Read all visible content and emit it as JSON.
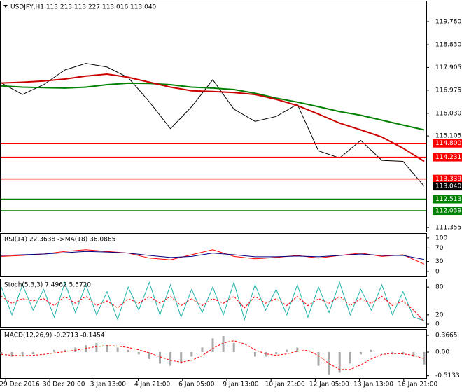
{
  "chart_data": [
    {
      "type": "line",
      "title": "USDJPY,H1  113.213 113.227 113.016 113.040",
      "ylim": [
        111.18,
        120.64
      ],
      "yticks": [
        {
          "value": 119.78,
          "label": "119.780"
        },
        {
          "value": 118.83,
          "label": "118.830"
        },
        {
          "value": 117.905,
          "label": "117.905"
        },
        {
          "value": 116.975,
          "label": "116.975"
        },
        {
          "value": 116.03,
          "label": "116.030"
        },
        {
          "value": 115.105,
          "label": "115.105"
        },
        {
          "value": 111.355,
          "label": "111.355"
        }
      ],
      "series": [
        {
          "color": "#000000",
          "width": 1,
          "values": [
            117.27,
            116.8,
            117.2,
            117.8,
            118.07,
            117.92,
            117.49,
            116.5,
            115.4,
            116.3,
            117.4,
            116.2,
            115.7,
            115.9,
            116.4,
            114.49,
            114.2,
            114.92,
            114.1,
            114.06,
            113.04
          ]
        },
        {
          "color": "#008000",
          "width": 2,
          "values": [
            117.15,
            117.1,
            117.08,
            117.06,
            117.1,
            117.2,
            117.26,
            117.25,
            117.2,
            117.1,
            117.06,
            117.0,
            116.85,
            116.65,
            116.49,
            116.3,
            116.1,
            115.95,
            115.75,
            115.55,
            115.35
          ]
        },
        {
          "color": "#cc0000",
          "width": 2,
          "values": [
            117.27,
            117.3,
            117.35,
            117.43,
            117.55,
            117.63,
            117.5,
            117.3,
            117.1,
            116.95,
            116.92,
            116.88,
            116.8,
            116.6,
            116.35,
            116.0,
            115.63,
            115.35,
            115.06,
            114.6,
            114.06
          ]
        }
      ],
      "levels": [
        {
          "value": 114.8,
          "label": "114.800",
          "color": "#ff0000",
          "line": true
        },
        {
          "value": 114.231,
          "label": "114.231",
          "color": "#ff0000",
          "line": true
        },
        {
          "value": 113.339,
          "label": "113.339",
          "color": "#ff0000",
          "line": true
        },
        {
          "value": 113.04,
          "label": "113.040",
          "color": "#000000",
          "line": false
        },
        {
          "value": 112.513,
          "label": "112.513",
          "color": "#008000",
          "line": true
        },
        {
          "value": 112.039,
          "label": "112.039",
          "color": "#008000",
          "line": true
        }
      ]
    },
    {
      "type": "line",
      "title": "RSI(14) 22.3638 ->MA(18) 36.0865",
      "ylim": [
        -14.3,
        114.3
      ],
      "yticks": [
        100,
        70,
        30,
        0
      ],
      "series": [
        {
          "color": "#ff0000",
          "width": 1,
          "values": [
            45,
            48,
            52,
            60,
            65,
            60,
            55,
            40,
            35,
            50,
            65,
            45,
            38,
            42,
            48,
            40,
            48,
            55,
            45,
            50,
            22.3638
          ]
        },
        {
          "color": "#000080",
          "width": 1,
          "values": [
            48,
            50,
            52,
            56,
            60,
            58,
            55,
            48,
            42,
            45,
            55,
            50,
            44,
            44,
            46,
            44,
            48,
            52,
            48,
            48,
            36.0865
          ]
        }
      ]
    },
    {
      "type": "line",
      "title": "Stoch(5,3,3) 7.4962 5.5720",
      "ylim": [
        -6,
        98.5
      ],
      "yticks": [
        80,
        20,
        0
      ],
      "series": [
        {
          "color": "#20b2aa",
          "width": 1,
          "values": [
            80,
            20,
            85,
            30,
            75,
            15,
            90,
            25,
            85,
            20,
            70,
            10,
            80,
            30,
            90,
            20,
            85,
            15,
            75,
            25,
            80,
            20,
            90,
            10,
            85,
            30,
            75,
            20,
            85,
            15,
            80,
            25,
            90,
            20,
            75,
            30,
            85,
            20,
            70,
            15,
            7.4962
          ]
        },
        {
          "color": "#ff0000",
          "width": 1,
          "dash": true,
          "values": [
            60,
            45,
            55,
            50,
            55,
            40,
            60,
            45,
            60,
            40,
            50,
            35,
            55,
            45,
            60,
            45,
            60,
            40,
            55,
            40,
            55,
            45,
            60,
            35,
            60,
            45,
            55,
            40,
            60,
            40,
            55,
            45,
            60,
            40,
            55,
            45,
            60,
            40,
            50,
            30,
            5.572
          ]
        }
      ]
    },
    {
      "type": "combo",
      "title": "MACD(12,26,9) -0.2713 -0.1454",
      "ylim": [
        -0.565,
        0.504
      ],
      "yticks": [
        0.3665,
        {
          "value": 0,
          "label": "0.00"
        },
        -0.5133
      ],
      "series": [
        {
          "color": "#a9a9a9",
          "kind": "bar",
          "values": [
            -0.05,
            -0.1,
            -0.1,
            -0.05,
            0.0,
            0.05,
            0.05,
            0.1,
            0.15,
            0.2,
            0.15,
            0.1,
            0.05,
            -0.05,
            -0.15,
            -0.25,
            -0.3,
            -0.25,
            -0.1,
            0.1,
            0.3,
            0.35,
            0.2,
            0.0,
            -0.1,
            -0.1,
            -0.05,
            0.05,
            0.1,
            0.0,
            -0.3,
            -0.5,
            -0.45,
            -0.25,
            -0.05,
            0.05,
            0.0,
            -0.05,
            -0.05,
            -0.1,
            -0.2713
          ]
        },
        {
          "color": "#ff0000",
          "kind": "line",
          "dash": true,
          "width": 1,
          "values": [
            -0.05,
            -0.07,
            -0.08,
            -0.07,
            -0.05,
            -0.02,
            0.01,
            0.04,
            0.08,
            0.12,
            0.14,
            0.13,
            0.1,
            0.05,
            -0.02,
            -0.1,
            -0.18,
            -0.22,
            -0.18,
            -0.08,
            0.08,
            0.2,
            0.25,
            0.18,
            0.05,
            -0.04,
            -0.07,
            -0.04,
            0.02,
            0.04,
            -0.08,
            -0.25,
            -0.38,
            -0.38,
            -0.28,
            -0.15,
            -0.05,
            -0.03,
            -0.04,
            -0.07,
            -0.1454
          ]
        }
      ]
    }
  ],
  "time_axis": {
    "labels": [
      "29 Dec 2016",
      "30 Dec 20:00",
      "3 Jan 13:00",
      "4 Jan 21:00",
      "6 Jan 05:00",
      "9 Jan 13:00",
      "10 Jan 21:00",
      "12 Jan 05:00",
      "13 Jan 13:00",
      "16 Jan 21:00"
    ]
  }
}
